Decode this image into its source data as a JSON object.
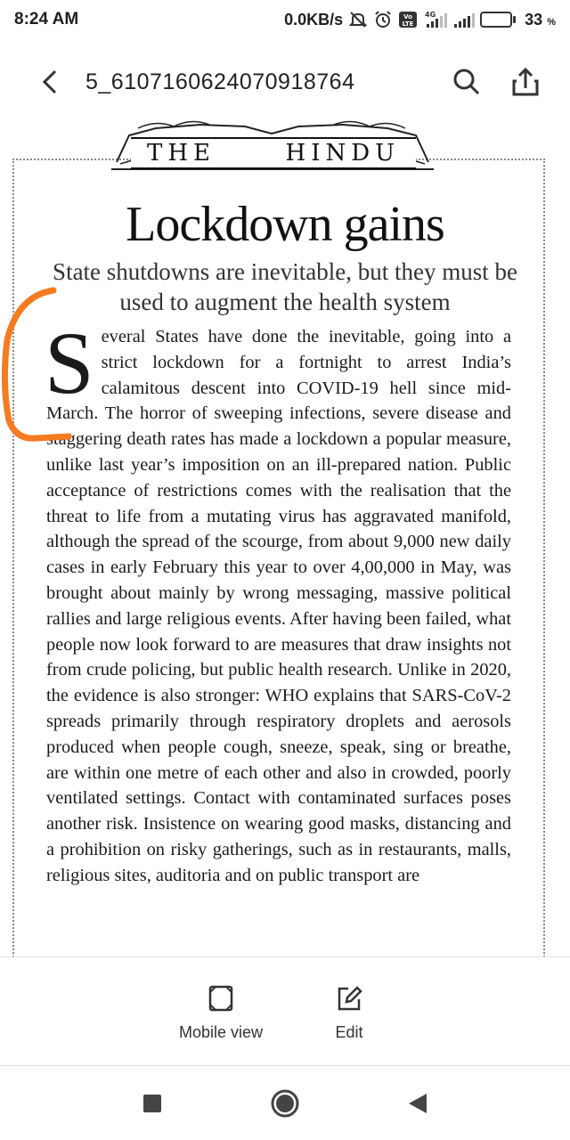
{
  "status_bar": {
    "time": "8:24 AM",
    "speed": "0.0KB/s",
    "network": "4G",
    "battery_percent": "33",
    "battery_symbol": "%",
    "battery_level": 0.33,
    "battery_color": "#f0c419"
  },
  "app_bar": {
    "title": "5_6107160624070918764",
    "back_icon": "chevron-left-icon",
    "search_icon": "search-icon",
    "share_icon": "share-icon"
  },
  "document": {
    "masthead_left": "THE",
    "masthead_right": "HINDU",
    "headline": "Lockdown gains",
    "subhead": "State shutdowns are inevitable, but they must be used to augment the health system",
    "drop_cap": "S",
    "body": "everal States have done the inevitable, going into a strict lockdown for a fortnight to arrest India’s calamitous descent into COVID-19 hell since mid-March. The horror of sweeping infections, severe disease and staggering death rates has made a lockdown a popular measure, unlike last year’s imposition on an ill-prepared nation. Public acceptance of restrictions comes with the realisation that the threat to life from a mutating virus has aggravated manifold, although the spread of the scourge, from about 9,000 new daily cases in early February this year to over 4,00,000 in May, was brought about mainly by wrong messaging, massive political rallies and large religious events. After having been failed, what people now look forward to are measures that draw insights not from crude policing, but public health research. Unlike in 2020, the evidence is also stronger: WHO explains that SARS-CoV-2 spreads primarily through respiratory droplets and aerosols produced when people cough, sneeze, speak, sing or breathe, are within one metre of each other and also in crowded, poorly ventilated settings. Contact with contaminated surfaces poses another risk. Insistence on wearing good masks, distancing and a prohibition on risky gatherings, such as in restaurants, malls, religious sites, auditoria and on public transport are",
    "annotation_color": "#f47b20"
  },
  "toolbar": {
    "mobile_view_label": "Mobile view",
    "edit_label": "Edit"
  },
  "nav": {
    "recents_icon": "square-icon",
    "home_icon": "circle-icon",
    "back_icon": "triangle-back-icon"
  }
}
